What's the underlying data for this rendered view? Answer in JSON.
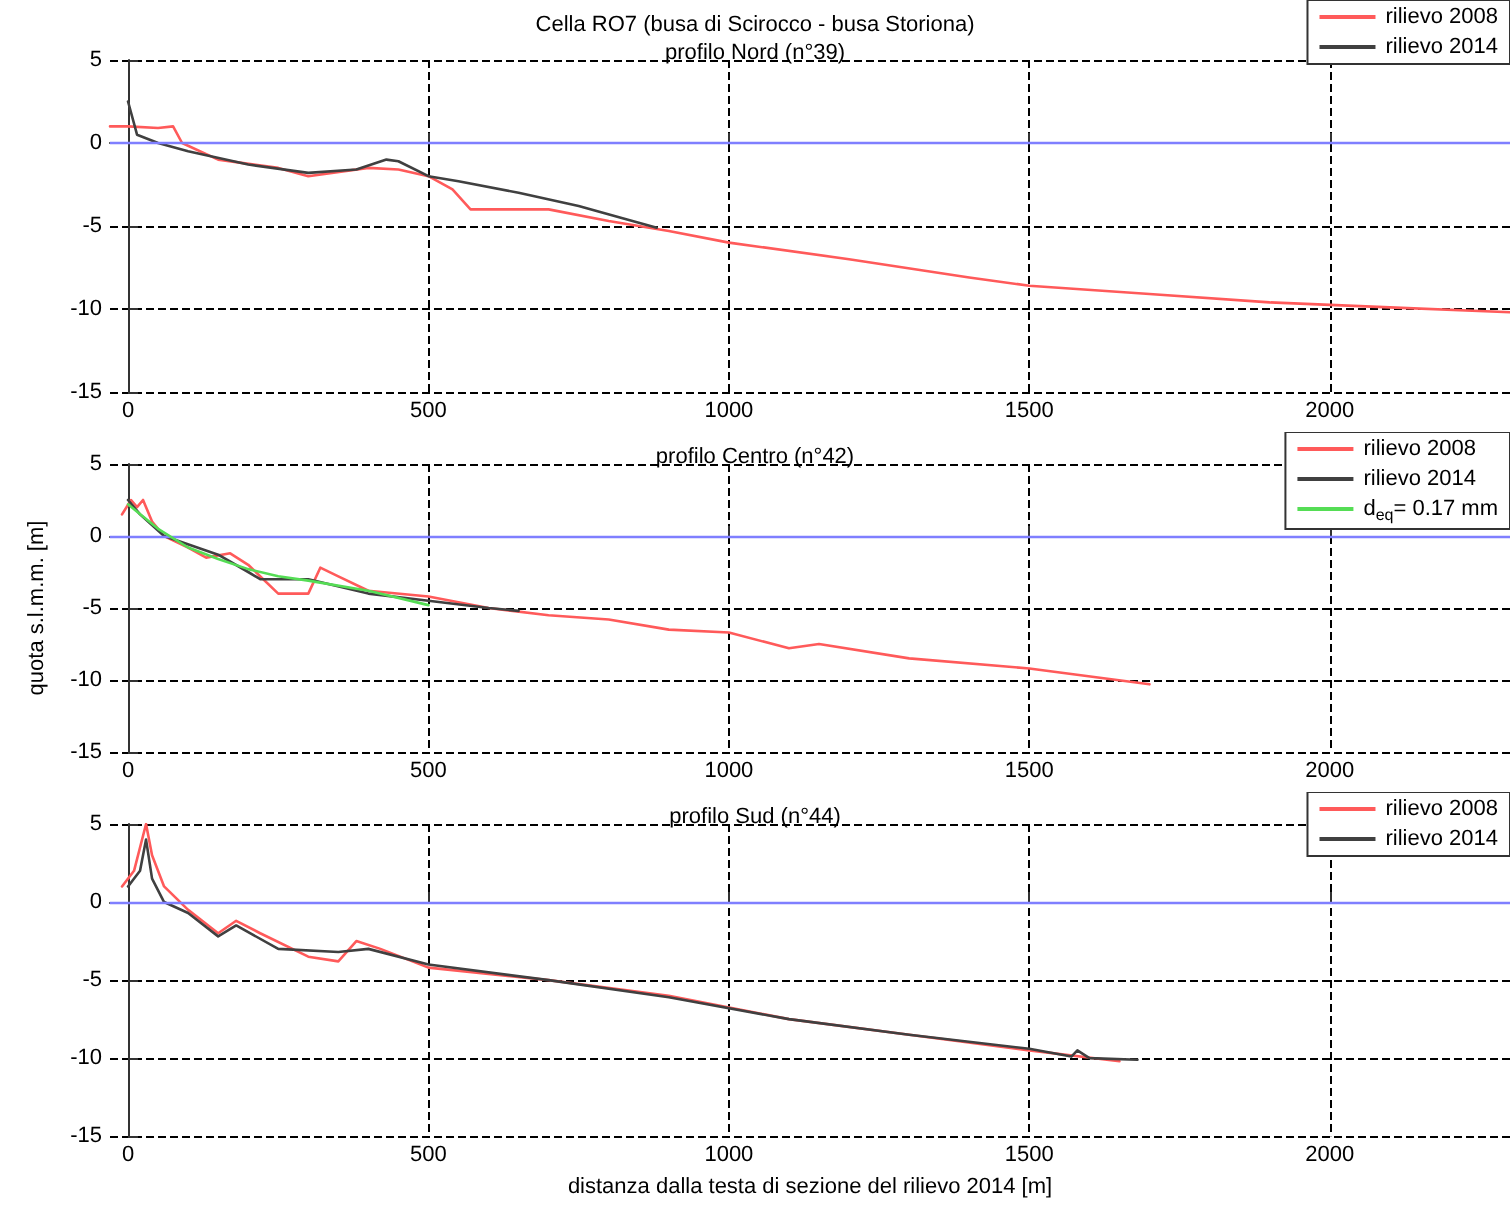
{
  "chart_data": [
    {
      "type": "line",
      "title": "Cella RO7 (busa di Scirocco - busa Storiona)",
      "subtitle": "profilo Nord (n°39)",
      "xlim": [
        -30,
        2300
      ],
      "ylim": [
        -15,
        5
      ],
      "xticks": [
        0,
        500,
        1000,
        1500,
        2000
      ],
      "yticks": [
        -15,
        -10,
        -5,
        0,
        5
      ],
      "grid": true,
      "legend": "top right",
      "marker": "none",
      "line_style": "solid",
      "ref_lines": [
        {
          "axis": "y",
          "value": 0,
          "label": null,
          "color": "#7f7fff"
        }
      ],
      "series": [
        {
          "name": "rilievo 2008",
          "color": "#ff5a5a",
          "x": [
            -30,
            0,
            50,
            75,
            90,
            150,
            250,
            300,
            400,
            450,
            500,
            540,
            570,
            650,
            700,
            800,
            900,
            1000,
            1200,
            1400,
            1500,
            1700,
            1900,
            2100,
            2300
          ],
          "values": [
            1,
            1,
            0.9,
            1,
            0,
            -1,
            -1.5,
            -2,
            -1.5,
            -1.6,
            -2,
            -2.8,
            -4,
            -4,
            -4,
            -4.7,
            -5.3,
            -6,
            -7,
            -8.1,
            -8.6,
            -9.1,
            -9.6,
            -9.9,
            -10.2
          ]
        },
        {
          "name": "rilievo 2014",
          "color": "#404040",
          "x": [
            0,
            15,
            50,
            100,
            200,
            300,
            380,
            430,
            450,
            500,
            550,
            650,
            750,
            850,
            880
          ],
          "values": [
            2.5,
            0.5,
            0,
            -0.5,
            -1.3,
            -1.8,
            -1.6,
            -1,
            -1.1,
            -2,
            -2.3,
            -3,
            -3.8,
            -4.8,
            -5.1
          ]
        }
      ]
    },
    {
      "type": "line",
      "title": "profilo Centro (n°42)",
      "ylabel": "quota s.l.m.m. [m]",
      "xlim": [
        -30,
        2300
      ],
      "ylim": [
        -15,
        5
      ],
      "xticks": [
        0,
        500,
        1000,
        1500,
        2000
      ],
      "yticks": [
        -15,
        -10,
        -5,
        0,
        5
      ],
      "grid": true,
      "legend": "top right",
      "marker": "none",
      "line_style": "solid",
      "ref_lines": [
        {
          "axis": "y",
          "value": 0,
          "label": null,
          "color": "#7f7fff"
        }
      ],
      "series": [
        {
          "name": "rilievo 2008",
          "color": "#ff5a5a",
          "x": [
            -10,
            5,
            15,
            25,
            40,
            60,
            100,
            130,
            170,
            200,
            250,
            300,
            320,
            350,
            400,
            500,
            600,
            700,
            800,
            900,
            1000,
            1100,
            1150,
            1300,
            1500,
            1700
          ],
          "values": [
            1.5,
            2.5,
            2,
            2.5,
            1,
            0,
            -0.8,
            -1.5,
            -1.2,
            -2,
            -4,
            -4,
            -2.2,
            -2.8,
            -3.8,
            -4.2,
            -5,
            -5.5,
            -5.8,
            -6.5,
            -6.7,
            -7.8,
            -7.5,
            -8.5,
            -9.2,
            -10.3
          ]
        },
        {
          "name": "rilievo 2014",
          "color": "#404040",
          "x": [
            0,
            20,
            60,
            150,
            200,
            220,
            300,
            400,
            500,
            600,
            650
          ],
          "values": [
            2.5,
            1.5,
            0,
            -1.3,
            -2.5,
            -3,
            -3,
            -4,
            -4.5,
            -5,
            -5.2
          ]
        },
        {
          "name": "d$_{eq}$= 0.17 mm",
          "color": "#55dd55",
          "x": [
            0,
            50,
            100,
            150,
            200,
            250,
            300,
            400,
            500
          ],
          "values": [
            2.2,
            0.5,
            -0.8,
            -1.6,
            -2.3,
            -2.8,
            -3.1,
            -3.8,
            -4.8
          ]
        }
      ]
    },
    {
      "type": "line",
      "title": "profilo Sud (n°44)",
      "xlabel": "distanza dalla testa di sezione del rilievo 2014 [m]",
      "xlim": [
        -30,
        2300
      ],
      "ylim": [
        -15,
        5
      ],
      "xticks": [
        0,
        500,
        1000,
        1500,
        2000
      ],
      "yticks": [
        -15,
        -10,
        -5,
        0,
        5
      ],
      "grid": true,
      "legend": "top right",
      "marker": "none",
      "line_style": "solid",
      "ref_lines": [
        {
          "axis": "y",
          "value": 0,
          "label": null,
          "color": "#7f7fff"
        }
      ],
      "series": [
        {
          "name": "rilievo 2008",
          "color": "#ff5a5a",
          "x": [
            -10,
            10,
            30,
            40,
            60,
            100,
            150,
            180,
            220,
            300,
            350,
            380,
            420,
            500,
            700,
            900,
            1100,
            1300,
            1500,
            1650
          ],
          "values": [
            1,
            2,
            5,
            3,
            1,
            -0.5,
            -2,
            -1.2,
            -2,
            -3.5,
            -3.8,
            -2.5,
            -3,
            -4.2,
            -5,
            -6,
            -7.5,
            -8.5,
            -9.5,
            -10.2
          ]
        },
        {
          "name": "rilievo 2014",
          "color": "#404040",
          "x": [
            0,
            20,
            30,
            40,
            60,
            100,
            150,
            180,
            250,
            350,
            400,
            500,
            700,
            900,
            1100,
            1300,
            1500,
            1570,
            1580,
            1600,
            1680
          ],
          "values": [
            1,
            2,
            4,
            1.5,
            0,
            -0.7,
            -2.2,
            -1.5,
            -3,
            -3.2,
            -3,
            -4,
            -5,
            -6.1,
            -7.5,
            -8.5,
            -9.4,
            -9.9,
            -9.5,
            -10,
            -10.1
          ]
        }
      ]
    }
  ]
}
